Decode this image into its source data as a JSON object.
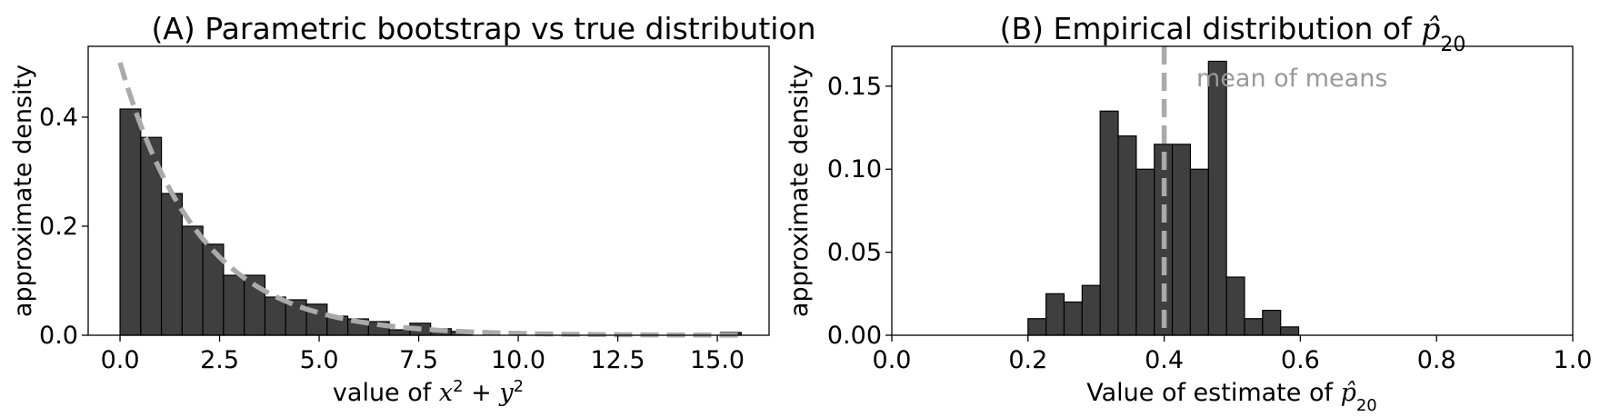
{
  "chart_data": [
    {
      "type": "bar",
      "title": "(A) Parametric bootstrap vs true distribution",
      "xlabel": "value of x² + y²",
      "ylabel": "approximate density",
      "xlim": [
        -0.8,
        16.3
      ],
      "ylim": [
        0,
        0.53
      ],
      "xticks": [
        {
          "v": 0.0,
          "label": "0.0"
        },
        {
          "v": 2.5,
          "label": "2.5"
        },
        {
          "v": 5.0,
          "label": "5.0"
        },
        {
          "v": 7.5,
          "label": "7.5"
        },
        {
          "v": 10.0,
          "label": "10.0"
        },
        {
          "v": 12.5,
          "label": "12.5"
        },
        {
          "v": 15.0,
          "label": "15.0"
        }
      ],
      "yticks": [
        {
          "v": 0.0,
          "label": "0.0"
        },
        {
          "v": 0.2,
          "label": "0.2"
        },
        {
          "v": 0.4,
          "label": "0.4"
        }
      ],
      "bin_width": 0.52,
      "bins": [
        {
          "x": 0.0,
          "value": 0.415
        },
        {
          "x": 0.52,
          "value": 0.363
        },
        {
          "x": 1.04,
          "value": 0.26
        },
        {
          "x": 1.56,
          "value": 0.2
        },
        {
          "x": 2.08,
          "value": 0.167
        },
        {
          "x": 2.6,
          "value": 0.11
        },
        {
          "x": 3.12,
          "value": 0.11
        },
        {
          "x": 3.64,
          "value": 0.07
        },
        {
          "x": 4.16,
          "value": 0.065
        },
        {
          "x": 4.68,
          "value": 0.057
        },
        {
          "x": 5.2,
          "value": 0.035
        },
        {
          "x": 5.72,
          "value": 0.03
        },
        {
          "x": 6.24,
          "value": 0.025
        },
        {
          "x": 6.76,
          "value": 0.01
        },
        {
          "x": 7.28,
          "value": 0.022
        },
        {
          "x": 7.8,
          "value": 0.012
        },
        {
          "x": 8.32,
          "value": 0.007
        },
        {
          "x": 15.08,
          "value": 0.005
        }
      ],
      "curve": {
        "rate": 0.5,
        "x_start": 0.0,
        "x_end": 15.6,
        "style": "dashed",
        "color": "#aaaaaa"
      },
      "bar_color": "#3f3f3f"
    },
    {
      "type": "bar",
      "title": "(B) Empirical distribution of p̂₂₀",
      "xlabel": "Value of estimate of p̂₂₀",
      "ylabel": "approximate density",
      "xlim": [
        0.0,
        1.0
      ],
      "ylim": [
        0,
        0.174
      ],
      "xticks": [
        {
          "v": 0.0,
          "label": "0.0"
        },
        {
          "v": 0.2,
          "label": "0.2"
        },
        {
          "v": 0.4,
          "label": "0.4"
        },
        {
          "v": 0.6,
          "label": "0.6"
        },
        {
          "v": 0.8,
          "label": "0.8"
        },
        {
          "v": 1.0,
          "label": "1.0"
        }
      ],
      "yticks": [
        {
          "v": 0.0,
          "label": "0.00"
        },
        {
          "v": 0.05,
          "label": "0.05"
        },
        {
          "v": 0.1,
          "label": "0.10"
        },
        {
          "v": 0.15,
          "label": "0.15"
        }
      ],
      "bin_width": 0.0265,
      "bins": [
        {
          "x": 0.2,
          "value": 0.01
        },
        {
          "x": 0.2265,
          "value": 0.025
        },
        {
          "x": 0.253,
          "value": 0.02
        },
        {
          "x": 0.2795,
          "value": 0.03
        },
        {
          "x": 0.306,
          "value": 0.135
        },
        {
          "x": 0.3325,
          "value": 0.12
        },
        {
          "x": 0.359,
          "value": 0.1
        },
        {
          "x": 0.3855,
          "value": 0.115
        },
        {
          "x": 0.412,
          "value": 0.115
        },
        {
          "x": 0.4385,
          "value": 0.1
        },
        {
          "x": 0.465,
          "value": 0.165
        },
        {
          "x": 0.4915,
          "value": 0.035
        },
        {
          "x": 0.518,
          "value": 0.01
        },
        {
          "x": 0.5445,
          "value": 0.015
        },
        {
          "x": 0.571,
          "value": 0.005
        }
      ],
      "vline": {
        "x": 0.4,
        "label": "mean of means",
        "style": "dashed",
        "color": "#aaaaaa"
      },
      "bar_color": "#3f3f3f"
    }
  ]
}
